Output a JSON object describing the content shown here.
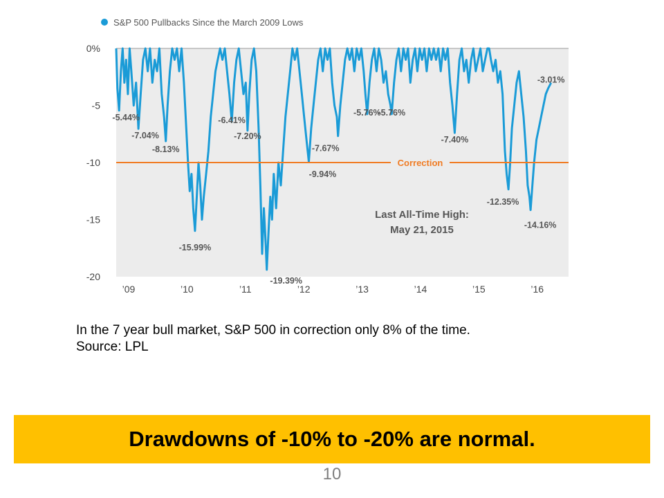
{
  "chart_data": {
    "type": "area",
    "legend": "S&P 500 Pullbacks Since the March 2009 Lows",
    "legend_position": "top-left",
    "ylim": [
      -20,
      0
    ],
    "yticks": [
      {
        "value": 0,
        "label": "0%"
      },
      {
        "value": -5,
        "label": "-5"
      },
      {
        "value": -10,
        "label": "-10"
      },
      {
        "value": -15,
        "label": "-15"
      },
      {
        "value": -20,
        "label": "-20"
      }
    ],
    "xlim": [
      2009.0,
      2016.75
    ],
    "xticks": [
      {
        "value": 2009,
        "label": "’09"
      },
      {
        "value": 2010,
        "label": "’10"
      },
      {
        "value": 2011,
        "label": "’11"
      },
      {
        "value": 2012,
        "label": "’12"
      },
      {
        "value": 2013,
        "label": "’13"
      },
      {
        "value": 2014,
        "label": "’14"
      },
      {
        "value": 2015,
        "label": "’15"
      },
      {
        "value": 2016,
        "label": "’16"
      }
    ],
    "correction": {
      "value": -10,
      "label": "Correction"
    },
    "annotation": [
      "Last All-Time High:",
      "May 21, 2015"
    ],
    "pullbacks": [
      {
        "x": 2009.05,
        "y": -5.44,
        "label": "-5.44%"
      },
      {
        "x": 2009.38,
        "y": -7.04,
        "label": "-7.04%"
      },
      {
        "x": 2009.85,
        "y": -8.13,
        "label": "-8.13%"
      },
      {
        "x": 2010.35,
        "y": -15.99,
        "label": "-15.99%"
      },
      {
        "x": 2010.98,
        "y": -6.41,
        "label": "-6.41%"
      },
      {
        "x": 2011.25,
        "y": -7.2,
        "label": "-7.20%"
      },
      {
        "x": 2011.58,
        "y": -19.39,
        "label": "-19.39%"
      },
      {
        "x": 2012.3,
        "y": -9.94,
        "label": "-9.94%"
      },
      {
        "x": 2012.8,
        "y": -7.67,
        "label": "-7.67%"
      },
      {
        "x": 2013.3,
        "y": -5.76,
        "label": "-5.76%"
      },
      {
        "x": 2013.72,
        "y": -5.76,
        "label": "-5.76%"
      },
      {
        "x": 2014.8,
        "y": -7.4,
        "label": "-7.40%"
      },
      {
        "x": 2015.72,
        "y": -12.35,
        "label": "-12.35%"
      },
      {
        "x": 2016.1,
        "y": -14.16,
        "label": "-14.16%"
      },
      {
        "x": 2016.45,
        "y": -3.01,
        "label": "-3.01%"
      }
    ],
    "series": [
      {
        "name": "S&P 500 Pullbacks Since the March 2009 Lows",
        "points": [
          [
            2009.0,
            0
          ],
          [
            2009.02,
            -3.5
          ],
          [
            2009.05,
            -5.44
          ],
          [
            2009.08,
            -2
          ],
          [
            2009.11,
            0
          ],
          [
            2009.14,
            -3
          ],
          [
            2009.17,
            -1
          ],
          [
            2009.2,
            -4
          ],
          [
            2009.23,
            0
          ],
          [
            2009.26,
            -2
          ],
          [
            2009.3,
            -5
          ],
          [
            2009.34,
            -3
          ],
          [
            2009.38,
            -7.04
          ],
          [
            2009.42,
            -4
          ],
          [
            2009.46,
            -1
          ],
          [
            2009.5,
            0
          ],
          [
            2009.54,
            -2
          ],
          [
            2009.58,
            0
          ],
          [
            2009.62,
            -3
          ],
          [
            2009.66,
            -1
          ],
          [
            2009.7,
            -2
          ],
          [
            2009.74,
            0
          ],
          [
            2009.78,
            -4
          ],
          [
            2009.82,
            -6
          ],
          [
            2009.85,
            -8.13
          ],
          [
            2009.88,
            -5
          ],
          [
            2009.92,
            -2
          ],
          [
            2009.96,
            0
          ],
          [
            2010.0,
            -1
          ],
          [
            2010.04,
            0
          ],
          [
            2010.08,
            -2
          ],
          [
            2010.12,
            0
          ],
          [
            2010.16,
            -3
          ],
          [
            2010.2,
            -7
          ],
          [
            2010.23,
            -10
          ],
          [
            2010.26,
            -12.5
          ],
          [
            2010.29,
            -11
          ],
          [
            2010.32,
            -14
          ],
          [
            2010.35,
            -15.99
          ],
          [
            2010.38,
            -13
          ],
          [
            2010.41,
            -10
          ],
          [
            2010.44,
            -12
          ],
          [
            2010.47,
            -15
          ],
          [
            2010.5,
            -13
          ],
          [
            2010.54,
            -11
          ],
          [
            2010.58,
            -9
          ],
          [
            2010.62,
            -6
          ],
          [
            2010.66,
            -4
          ],
          [
            2010.7,
            -2
          ],
          [
            2010.74,
            -1
          ],
          [
            2010.78,
            0
          ],
          [
            2010.82,
            -1
          ],
          [
            2010.86,
            0
          ],
          [
            2010.9,
            -2
          ],
          [
            2010.94,
            -4
          ],
          [
            2010.98,
            -6.41
          ],
          [
            2011.02,
            -3
          ],
          [
            2011.06,
            -1
          ],
          [
            2011.1,
            0
          ],
          [
            2011.14,
            -2
          ],
          [
            2011.18,
            -4
          ],
          [
            2011.22,
            -3
          ],
          [
            2011.25,
            -7.2
          ],
          [
            2011.28,
            -4
          ],
          [
            2011.32,
            -1
          ],
          [
            2011.36,
            0
          ],
          [
            2011.4,
            -2
          ],
          [
            2011.44,
            -7
          ],
          [
            2011.47,
            -12
          ],
          [
            2011.5,
            -18
          ],
          [
            2011.53,
            -14
          ],
          [
            2011.56,
            -17
          ],
          [
            2011.58,
            -19.39
          ],
          [
            2011.61,
            -16
          ],
          [
            2011.64,
            -13
          ],
          [
            2011.67,
            -15
          ],
          [
            2011.7,
            -11
          ],
          [
            2011.74,
            -14
          ],
          [
            2011.78,
            -10
          ],
          [
            2011.82,
            -12
          ],
          [
            2011.86,
            -9
          ],
          [
            2011.9,
            -6
          ],
          [
            2011.94,
            -4
          ],
          [
            2011.98,
            -2
          ],
          [
            2012.02,
            0
          ],
          [
            2012.06,
            -1
          ],
          [
            2012.1,
            0
          ],
          [
            2012.14,
            -2
          ],
          [
            2012.18,
            -4
          ],
          [
            2012.22,
            -6
          ],
          [
            2012.26,
            -8
          ],
          [
            2012.3,
            -9.94
          ],
          [
            2012.34,
            -7
          ],
          [
            2012.38,
            -5
          ],
          [
            2012.42,
            -3
          ],
          [
            2012.46,
            -1
          ],
          [
            2012.5,
            0
          ],
          [
            2012.54,
            -2
          ],
          [
            2012.58,
            0
          ],
          [
            2012.62,
            -1
          ],
          [
            2012.66,
            0
          ],
          [
            2012.7,
            -3
          ],
          [
            2012.74,
            -5
          ],
          [
            2012.78,
            -6
          ],
          [
            2012.8,
            -7.67
          ],
          [
            2012.84,
            -5
          ],
          [
            2012.88,
            -3
          ],
          [
            2012.92,
            -1
          ],
          [
            2012.96,
            0
          ],
          [
            2013.0,
            -1
          ],
          [
            2013.04,
            0
          ],
          [
            2013.08,
            -2
          ],
          [
            2013.12,
            0
          ],
          [
            2013.16,
            -1
          ],
          [
            2013.2,
            0
          ],
          [
            2013.24,
            -2
          ],
          [
            2013.27,
            -4
          ],
          [
            2013.3,
            -5.76
          ],
          [
            2013.34,
            -3
          ],
          [
            2013.38,
            -1
          ],
          [
            2013.42,
            0
          ],
          [
            2013.46,
            -2
          ],
          [
            2013.5,
            0
          ],
          [
            2013.54,
            -1
          ],
          [
            2013.58,
            -3
          ],
          [
            2013.62,
            -2
          ],
          [
            2013.66,
            -4
          ],
          [
            2013.7,
            -5
          ],
          [
            2013.72,
            -5.76
          ],
          [
            2013.76,
            -3
          ],
          [
            2013.8,
            -1
          ],
          [
            2013.84,
            0
          ],
          [
            2013.88,
            -2
          ],
          [
            2013.92,
            0
          ],
          [
            2013.96,
            -1
          ],
          [
            2014.0,
            0
          ],
          [
            2014.04,
            -3
          ],
          [
            2014.08,
            -1
          ],
          [
            2014.12,
            0
          ],
          [
            2014.16,
            -2
          ],
          [
            2014.2,
            0
          ],
          [
            2014.24,
            -1
          ],
          [
            2014.28,
            0
          ],
          [
            2014.32,
            -2
          ],
          [
            2014.36,
            0
          ],
          [
            2014.4,
            -1
          ],
          [
            2014.44,
            0
          ],
          [
            2014.48,
            -1
          ],
          [
            2014.52,
            0
          ],
          [
            2014.56,
            -2
          ],
          [
            2014.6,
            0
          ],
          [
            2014.64,
            -1
          ],
          [
            2014.68,
            0
          ],
          [
            2014.72,
            -3
          ],
          [
            2014.76,
            -5
          ],
          [
            2014.8,
            -7.4
          ],
          [
            2014.84,
            -4
          ],
          [
            2014.88,
            -1
          ],
          [
            2014.92,
            0
          ],
          [
            2014.96,
            -2
          ],
          [
            2015.0,
            -1
          ],
          [
            2015.04,
            -3
          ],
          [
            2015.08,
            -1
          ],
          [
            2015.12,
            0
          ],
          [
            2015.16,
            -2
          ],
          [
            2015.2,
            -1
          ],
          [
            2015.24,
            0
          ],
          [
            2015.28,
            -2
          ],
          [
            2015.32,
            -1
          ],
          [
            2015.36,
            0
          ],
          [
            2015.39,
            0
          ],
          [
            2015.42,
            -1
          ],
          [
            2015.46,
            -2
          ],
          [
            2015.5,
            -1
          ],
          [
            2015.54,
            -3
          ],
          [
            2015.58,
            -2
          ],
          [
            2015.62,
            -4
          ],
          [
            2015.66,
            -9
          ],
          [
            2015.69,
            -11
          ],
          [
            2015.72,
            -12.35
          ],
          [
            2015.75,
            -10
          ],
          [
            2015.78,
            -7
          ],
          [
            2015.82,
            -5
          ],
          [
            2015.86,
            -3
          ],
          [
            2015.9,
            -2
          ],
          [
            2015.94,
            -4
          ],
          [
            2015.98,
            -6
          ],
          [
            2016.02,
            -9
          ],
          [
            2016.05,
            -12
          ],
          [
            2016.08,
            -13
          ],
          [
            2016.1,
            -14.16
          ],
          [
            2016.13,
            -12
          ],
          [
            2016.16,
            -10
          ],
          [
            2016.2,
            -8
          ],
          [
            2016.24,
            -7
          ],
          [
            2016.28,
            -6
          ],
          [
            2016.32,
            -5
          ],
          [
            2016.36,
            -4
          ],
          [
            2016.4,
            -3.5
          ],
          [
            2016.45,
            -3.01
          ]
        ]
      }
    ],
    "colors": {
      "line": "#1a9bd7",
      "correction": "#f07b22",
      "plot_bg": "#ececec",
      "label": "#555555"
    }
  },
  "caption": {
    "line1": "In the 7 year bull market, S&P 500 in correction only 8% of the time.",
    "line2": "Source: LPL"
  },
  "banner": {
    "text": "Drawdowns of -10% to -20% are normal.",
    "color": "#FFC000"
  },
  "page_number": "10"
}
